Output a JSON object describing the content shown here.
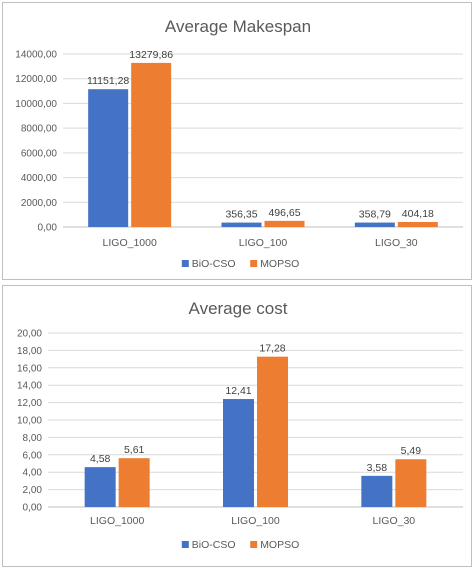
{
  "chart_data": [
    {
      "type": "bar",
      "title": "Average Makespan",
      "categories": [
        "LIGO_1000",
        "LIGO_100",
        "LIGO_30"
      ],
      "series": [
        {
          "name": "BiO-CSO",
          "values": [
            11151.28,
            356.35,
            358.79
          ],
          "labels": [
            "11151,28",
            "356,35",
            "358,79"
          ],
          "color": "#4472c4"
        },
        {
          "name": "MOPSO",
          "values": [
            13279.86,
            496.65,
            404.18
          ],
          "labels": [
            "13279,86",
            "496,65",
            "404,18"
          ],
          "color": "#ed7d31"
        }
      ],
      "ylim": [
        0,
        14000
      ],
      "yticks": [
        "0,00",
        "2000,00",
        "4000,00",
        "6000,00",
        "8000,00",
        "10000,00",
        "12000,00",
        "14000,00"
      ],
      "grid": true,
      "legend": "bottom"
    },
    {
      "type": "bar",
      "title": "Average cost",
      "categories": [
        "LIGO_1000",
        "LIGO_100",
        "LIGO_30"
      ],
      "series": [
        {
          "name": "BiO-CSO",
          "values": [
            4.58,
            12.41,
            3.58
          ],
          "labels": [
            "4,58",
            "12,41",
            "3,58"
          ],
          "color": "#4472c4"
        },
        {
          "name": "MOPSO",
          "values": [
            5.61,
            17.28,
            5.49
          ],
          "labels": [
            "5,61",
            "17,28",
            "5,49"
          ],
          "color": "#ed7d31"
        }
      ],
      "ylim": [
        0,
        20
      ],
      "yticks": [
        "0,00",
        "2,00",
        "4,00",
        "6,00",
        "8,00",
        "10,00",
        "12,00",
        "14,00",
        "16,00",
        "18,00",
        "20,00"
      ],
      "grid": true,
      "legend": "bottom"
    }
  ]
}
